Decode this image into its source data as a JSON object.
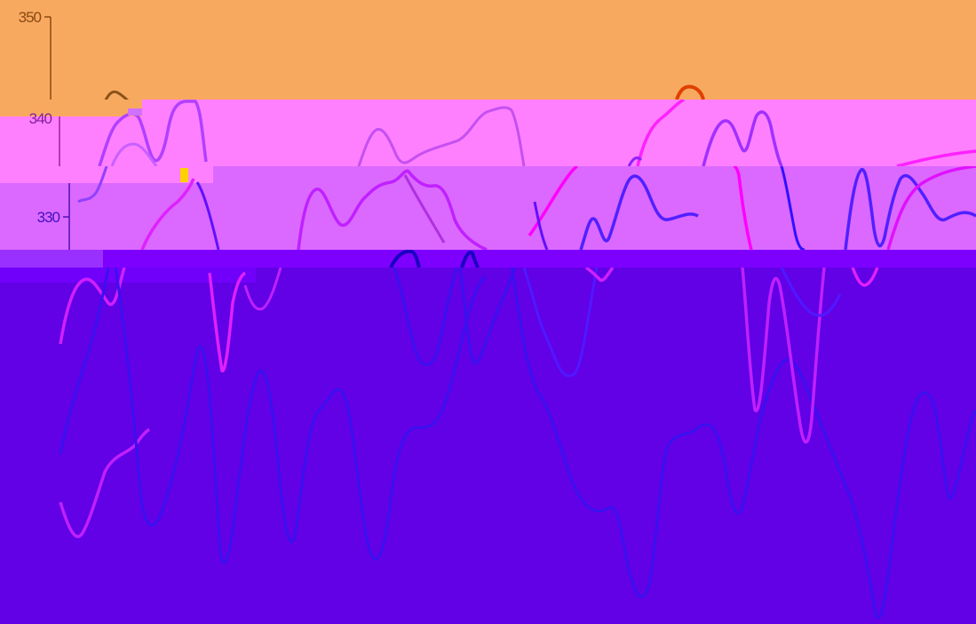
{
  "chart_data": {
    "type": "line",
    "title": "",
    "xlabel": "",
    "ylabel": "",
    "ylim": [
      330,
      350
    ],
    "yticks": [
      350,
      340,
      330
    ],
    "grid": false,
    "legend": "none",
    "series": [
      {
        "color": "#ff00ff"
      },
      {
        "color": "#8000ff"
      },
      {
        "color": "#2c00e0"
      }
    ]
  },
  "colors": {
    "band_1": "#f8a960",
    "band_2": "#ff80ff",
    "band_3": "#db69ff",
    "band_4": "#8000ff",
    "band_5": "#6200e6",
    "accent_a": "#ff00ff",
    "accent_b": "#8000ff",
    "accent_c": "#2c00e0"
  }
}
